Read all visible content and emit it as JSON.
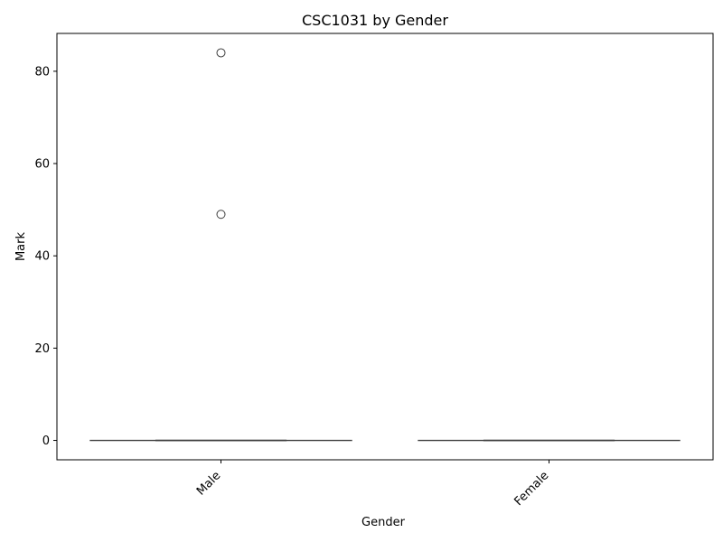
{
  "chart_data": {
    "type": "box",
    "title": "CSC1031 by Gender",
    "xlabel": "Gender",
    "ylabel": "Mark",
    "categories": [
      "Male",
      "Female"
    ],
    "ylim": [
      -4.2,
      88.2
    ],
    "yticks": [
      0,
      20,
      40,
      60,
      80
    ],
    "tick_labels": [
      "0",
      "20",
      "40",
      "60",
      "80"
    ],
    "grid": false,
    "boxes": [
      {
        "category": "Male",
        "whisker_low": 0,
        "q1": 0,
        "median": 0,
        "q3": 0,
        "whisker_high": 0,
        "outliers": [
          49,
          84
        ]
      },
      {
        "category": "Female",
        "whisker_low": 0,
        "q1": 0,
        "median": 0,
        "q3": 0,
        "whisker_high": 0,
        "outliers": []
      }
    ],
    "colors": {
      "box_line": "#3f3f3f",
      "axis": "#000000"
    }
  }
}
